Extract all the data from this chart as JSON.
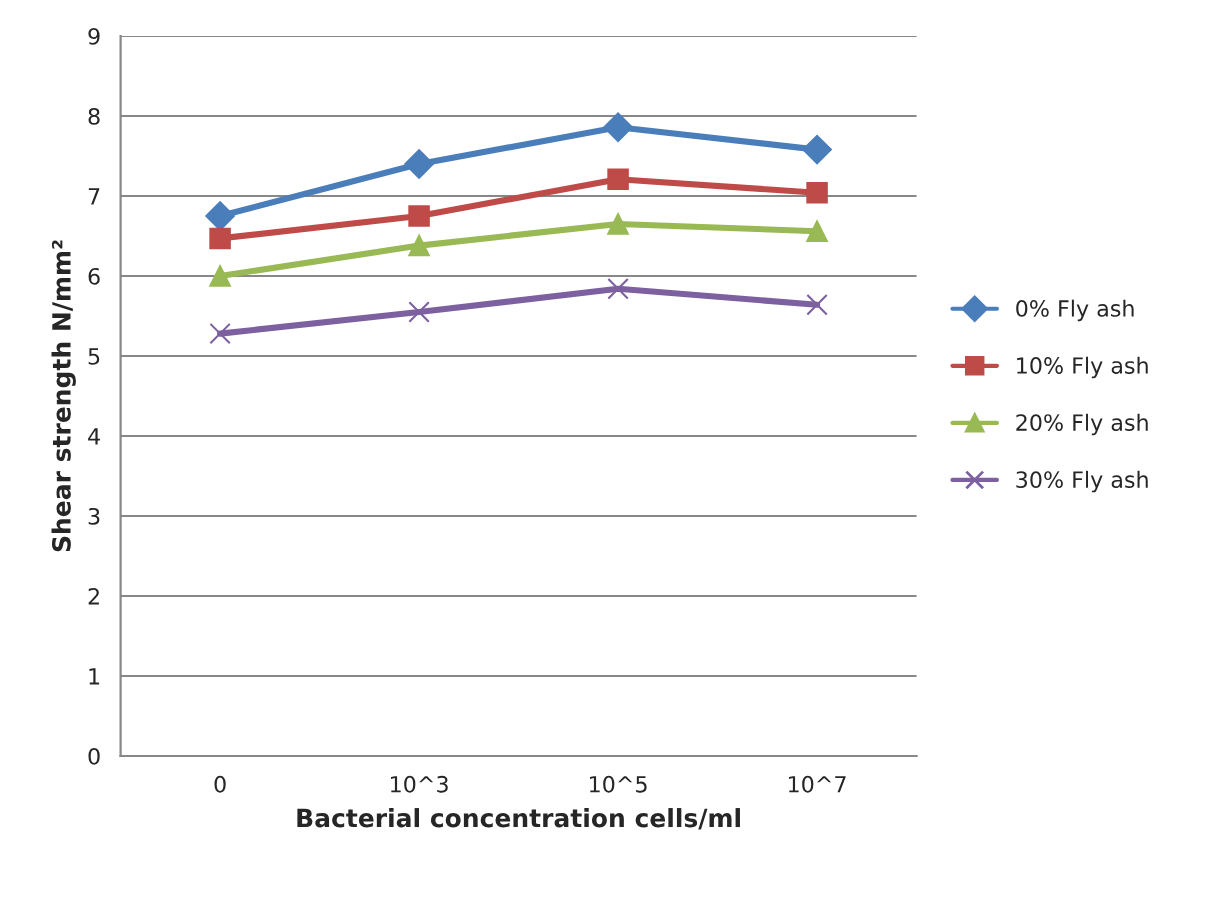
{
  "chart_data": {
    "type": "line",
    "xlabel": "Bacterial concentration cells/ml",
    "ylabel": "Shear strength N/mm²",
    "categories": [
      "0",
      "10^3",
      "10^5",
      "10^7"
    ],
    "series": [
      {
        "name": "0% Fly ash",
        "color": "#4a7ebb",
        "marker": "diamond",
        "values": [
          6.75,
          7.4,
          7.86,
          7.58
        ]
      },
      {
        "name": "10% Fly ash",
        "color": "#be4b48",
        "marker": "square",
        "values": [
          6.47,
          6.75,
          7.21,
          7.04
        ]
      },
      {
        "name": "20% Fly ash",
        "color": "#98b954",
        "marker": "triangle",
        "values": [
          6.0,
          6.38,
          6.65,
          6.56
        ]
      },
      {
        "name": "30% Fly ash",
        "color": "#7d60a0",
        "marker": "cross",
        "values": [
          5.28,
          5.55,
          5.84,
          5.64
        ]
      }
    ],
    "ylim": [
      0,
      9
    ],
    "yticks": [
      0,
      1,
      2,
      3,
      4,
      5,
      6,
      7,
      8,
      9
    ],
    "grid": "y",
    "legend": "right",
    "line_style": "solid"
  }
}
